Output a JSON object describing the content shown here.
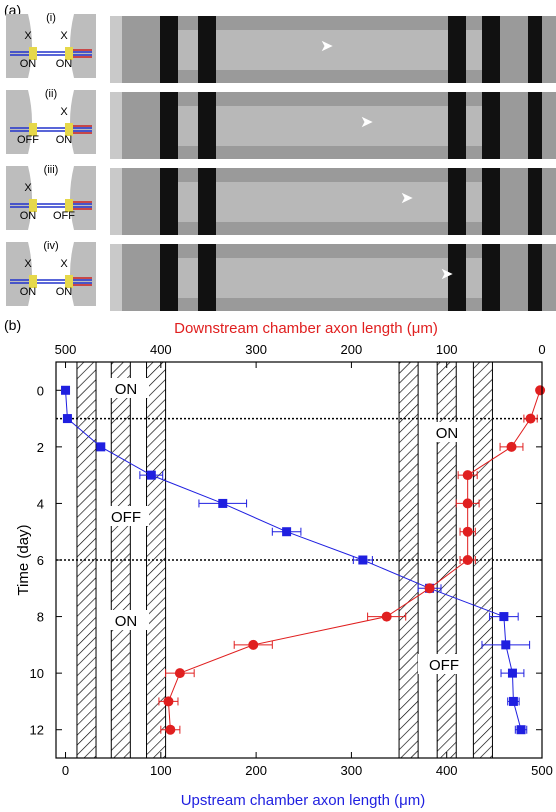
{
  "panel_a": {
    "label": "(a)",
    "rows": [
      {
        "numeral": "(i)",
        "left": "ON",
        "right": "ON",
        "left_mark": "X",
        "right_mark": "X"
      },
      {
        "numeral": "(ii)",
        "left": "OFF",
        "right": "ON",
        "left_mark": "",
        "right_mark": "X"
      },
      {
        "numeral": "(iii)",
        "left": "ON",
        "right": "OFF",
        "left_mark": "X",
        "right_mark": ""
      },
      {
        "numeral": "(iv)",
        "left": "ON",
        "right": "ON",
        "left_mark": "X",
        "right_mark": "X"
      }
    ]
  },
  "panel_b": {
    "label": "(b)",
    "region_labels": {
      "left_top": "ON",
      "left_middle": "OFF",
      "left_bottom": "ON",
      "right_top": "ON",
      "right_bottom": "OFF"
    }
  },
  "colors": {
    "upstream": "#1f1fe0",
    "downstream": "#e01f1f",
    "axis": "#000000"
  },
  "chart_data": {
    "type": "scatter",
    "xlabel": "Upstream chamber axon length (μm)",
    "x2label": "Downstream chamber axon length (μm)",
    "ylabel": "Time (day)",
    "xlim": [
      -10,
      500
    ],
    "x2lim": [
      510,
      0
    ],
    "ylim": [
      13,
      -1
    ],
    "x_ticks": [
      0,
      100,
      200,
      300,
      400,
      500
    ],
    "x2_ticks": [
      500,
      400,
      300,
      200,
      100,
      0
    ],
    "y_ticks": [
      0,
      2,
      4,
      6,
      8,
      10,
      12
    ],
    "hlines": [
      1,
      6
    ],
    "series": [
      {
        "marker": "square",
        "color": "#1f1fe0",
        "axis": "bottom",
        "points": [
          {
            "y": 0,
            "x": 0,
            "xerr": 0
          },
          {
            "y": 1,
            "x": 2,
            "xerr": 0
          },
          {
            "y": 2,
            "x": 37,
            "xerr": 0
          },
          {
            "y": 3,
            "x": 90,
            "xerr": 12
          },
          {
            "y": 4,
            "x": 165,
            "xerr": 25
          },
          {
            "y": 5,
            "x": 232,
            "xerr": 15
          },
          {
            "y": 6,
            "x": 312,
            "xerr": 10
          },
          {
            "y": 7,
            "x": 382,
            "xerr": 12
          },
          {
            "y": 8,
            "x": 460,
            "xerr": 15
          },
          {
            "y": 9,
            "x": 462,
            "xerr": 25
          },
          {
            "y": 10,
            "x": 469,
            "xerr": 12
          },
          {
            "y": 11,
            "x": 470,
            "xerr": 6
          },
          {
            "y": 12,
            "x": 478,
            "xerr": 6
          }
        ]
      },
      {
        "marker": "circle",
        "color": "#e01f1f",
        "axis": "top",
        "points": [
          {
            "y": 0,
            "x": 2,
            "xerr": 0
          },
          {
            "y": 1,
            "x": 12,
            "xerr": 7
          },
          {
            "y": 2,
            "x": 32,
            "xerr": 12
          },
          {
            "y": 3,
            "x": 78,
            "xerr": 10
          },
          {
            "y": 4,
            "x": 78,
            "xerr": 12
          },
          {
            "y": 5,
            "x": 78,
            "xerr": 8
          },
          {
            "y": 6,
            "x": 78,
            "xerr": 8
          },
          {
            "y": 7,
            "x": 118,
            "xerr": 0
          },
          {
            "y": 8,
            "x": 163,
            "xerr": 20
          },
          {
            "y": 9,
            "x": 303,
            "xerr": 20
          },
          {
            "y": 10,
            "x": 380,
            "xerr": 15
          },
          {
            "y": 11,
            "x": 392,
            "xerr": 10
          },
          {
            "y": 12,
            "x": 390,
            "xerr": 10
          }
        ]
      }
    ],
    "barrier_bands_x": [
      [
        12,
        32
      ],
      [
        48,
        68
      ],
      [
        85,
        105
      ],
      [
        350,
        370
      ],
      [
        390,
        410
      ],
      [
        428,
        448
      ]
    ],
    "grid": false,
    "legend": "none"
  }
}
